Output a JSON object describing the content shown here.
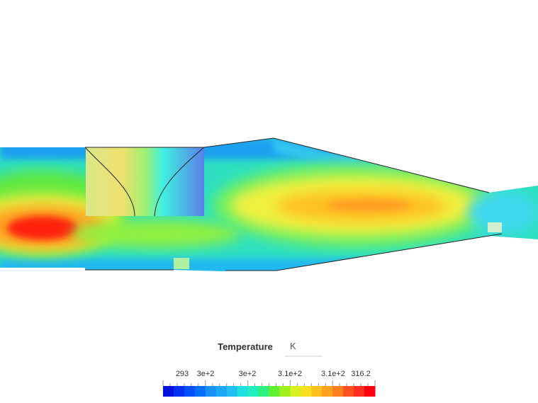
{
  "legend": {
    "title": "Temperature",
    "unit": "K",
    "tick_labels": [
      "293",
      "3e+2",
      "3e+2",
      "3.1e+2",
      "3.1e+2",
      "316.2"
    ]
  }
}
